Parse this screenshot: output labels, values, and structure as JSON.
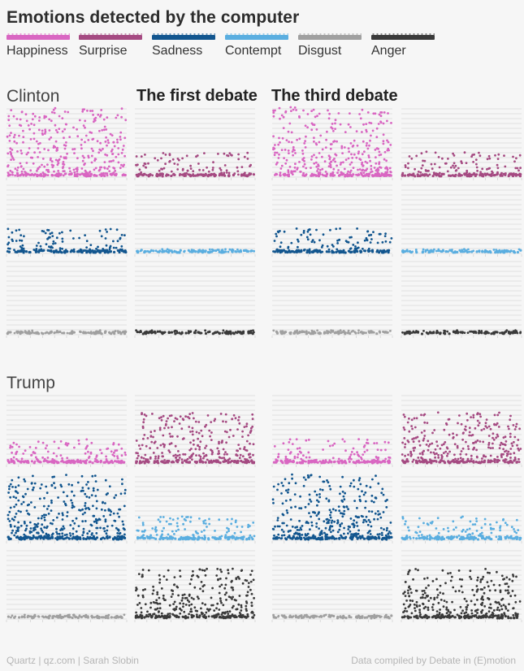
{
  "title": "Emotions detected by the computer",
  "legend": [
    {
      "label": "Happiness",
      "color": "#d966c2"
    },
    {
      "label": "Surprise",
      "color": "#a54a82"
    },
    {
      "label": "Sadness",
      "color": "#12568f"
    },
    {
      "label": "Contempt",
      "color": "#5aaee0"
    },
    {
      "label": "Disgust",
      "color": "#a0a0a0"
    },
    {
      "label": "Anger",
      "color": "#3a3a3a"
    }
  ],
  "debates": {
    "first": "The first debate",
    "third": "The third debate"
  },
  "candidates": {
    "clinton": "Clinton",
    "trump": "Trump"
  },
  "footer": {
    "left": "Quartz | qz.com | Sarah Slobin",
    "right": "Data compiled by Debate in (E)motion"
  },
  "chart_data": {
    "type": "scatter",
    "description_note": "Small multiples of detected emotion intensity over time; point density per panel reproduced procedurally.",
    "panels": [
      {
        "candidate": "Clinton",
        "debate": "The first debate",
        "emotion": "Happiness",
        "intensity": "high"
      },
      {
        "candidate": "Clinton",
        "debate": "The first debate",
        "emotion": "Surprise",
        "intensity": "low"
      },
      {
        "candidate": "Clinton",
        "debate": "The first debate",
        "emotion": "Sadness",
        "intensity": "low"
      },
      {
        "candidate": "Clinton",
        "debate": "The first debate",
        "emotion": "Contempt",
        "intensity": "none"
      },
      {
        "candidate": "Clinton",
        "debate": "The first debate",
        "emotion": "Disgust",
        "intensity": "none"
      },
      {
        "candidate": "Clinton",
        "debate": "The first debate",
        "emotion": "Anger",
        "intensity": "none"
      },
      {
        "candidate": "Clinton",
        "debate": "The third debate",
        "emotion": "Happiness",
        "intensity": "high"
      },
      {
        "candidate": "Clinton",
        "debate": "The third debate",
        "emotion": "Surprise",
        "intensity": "low"
      },
      {
        "candidate": "Clinton",
        "debate": "The third debate",
        "emotion": "Sadness",
        "intensity": "low"
      },
      {
        "candidate": "Clinton",
        "debate": "The third debate",
        "emotion": "Contempt",
        "intensity": "none"
      },
      {
        "candidate": "Clinton",
        "debate": "The third debate",
        "emotion": "Disgust",
        "intensity": "none"
      },
      {
        "candidate": "Clinton",
        "debate": "The third debate",
        "emotion": "Anger",
        "intensity": "none"
      },
      {
        "candidate": "Trump",
        "debate": "The first debate",
        "emotion": "Happiness",
        "intensity": "low"
      },
      {
        "candidate": "Trump",
        "debate": "The first debate",
        "emotion": "Surprise",
        "intensity": "medium"
      },
      {
        "candidate": "Trump",
        "debate": "The first debate",
        "emotion": "Sadness",
        "intensity": "high"
      },
      {
        "candidate": "Trump",
        "debate": "The first debate",
        "emotion": "Contempt",
        "intensity": "low"
      },
      {
        "candidate": "Trump",
        "debate": "The first debate",
        "emotion": "Disgust",
        "intensity": "none"
      },
      {
        "candidate": "Trump",
        "debate": "The first debate",
        "emotion": "Anger",
        "intensity": "medium"
      },
      {
        "candidate": "Trump",
        "debate": "The third debate",
        "emotion": "Happiness",
        "intensity": "low"
      },
      {
        "candidate": "Trump",
        "debate": "The third debate",
        "emotion": "Surprise",
        "intensity": "medium"
      },
      {
        "candidate": "Trump",
        "debate": "The third debate",
        "emotion": "Sadness",
        "intensity": "high"
      },
      {
        "candidate": "Trump",
        "debate": "The third debate",
        "emotion": "Contempt",
        "intensity": "low"
      },
      {
        "candidate": "Trump",
        "debate": "The third debate",
        "emotion": "Disgust",
        "intensity": "none"
      },
      {
        "candidate": "Trump",
        "debate": "The third debate",
        "emotion": "Anger",
        "intensity": "medium"
      }
    ],
    "grid": true
  }
}
